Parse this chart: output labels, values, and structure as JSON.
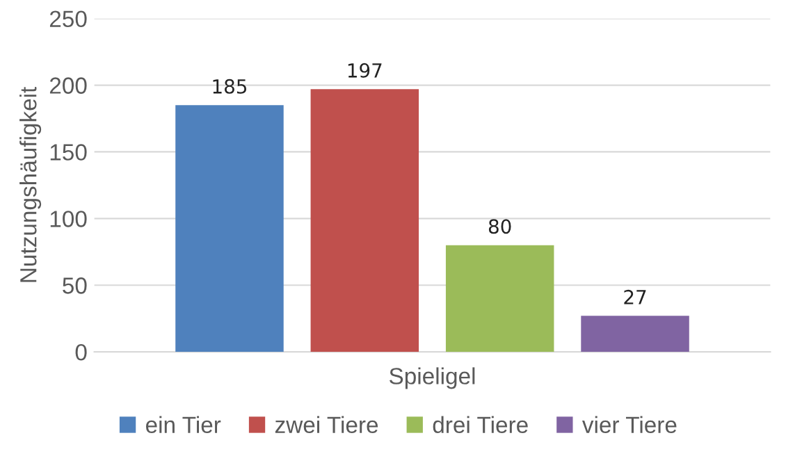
{
  "chart_data": {
    "type": "bar",
    "ylabel": "Nutzungshäufigkeit",
    "categories": [
      "Spieligel"
    ],
    "series": [
      {
        "name": "ein Tier",
        "color": "#4f81bd",
        "values": [
          185
        ]
      },
      {
        "name": "zwei Tiere",
        "color": "#c0504d",
        "values": [
          197
        ]
      },
      {
        "name": "drei Tiere",
        "color": "#9bbb59",
        "values": [
          80
        ]
      },
      {
        "name": "vier Tiere",
        "color": "#8064a2",
        "values": [
          27
        ]
      }
    ],
    "ylim": [
      0,
      250
    ],
    "yticks": [
      0,
      50,
      100,
      150,
      200,
      250
    ],
    "grid": "y",
    "legend": "bottom",
    "data_labels": true
  }
}
